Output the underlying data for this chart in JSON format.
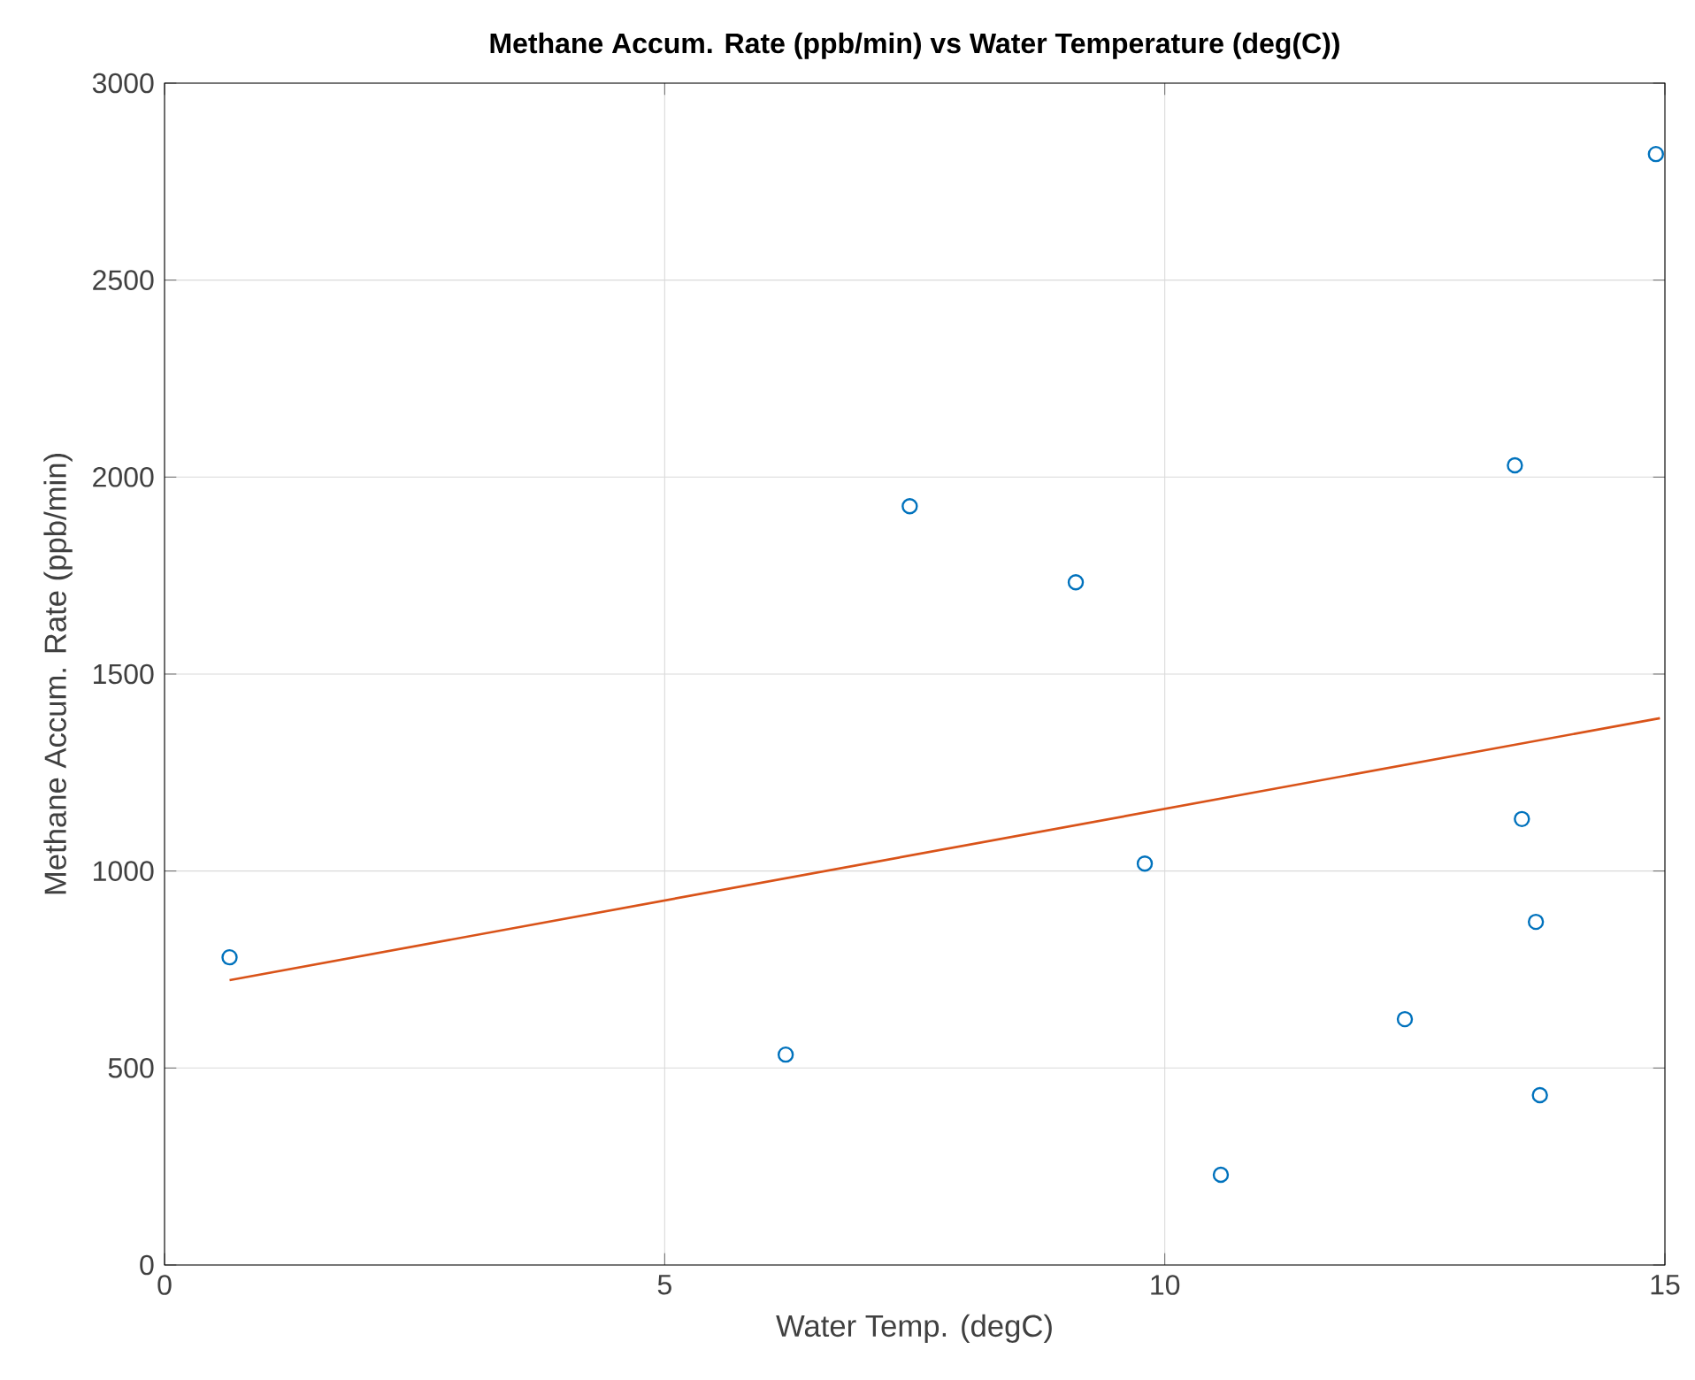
{
  "chart_data": {
    "type": "scatter",
    "title": "Methane Accum. Rate (ppb/min) vs Water Temperature (deg(C))",
    "xlabel": "Water Temp. (degC)",
    "ylabel": "Methane Accum. Rate (ppb/min)",
    "series": [
      {
        "color": "#0072bd",
        "x": [
          0.65,
          6.21,
          7.45,
          9.11,
          9.8,
          10.56,
          12.4,
          13.5,
          13.57,
          13.71,
          13.75,
          14.91
        ],
        "values": [
          781,
          534,
          1926,
          1733,
          1019,
          229,
          624,
          2030,
          1132,
          871,
          431,
          2820
        ]
      },
      {
        "type": "line",
        "marker": "none",
        "color": "#d95319",
        "x": [
          0.65,
          14.95
        ],
        "values": [
          723,
          1388
        ]
      }
    ],
    "marker": "circle",
    "grid": true,
    "xlim": [
      0,
      15
    ],
    "ylim": [
      0,
      3000
    ],
    "xticks": [
      0,
      5,
      10,
      15
    ],
    "yticks": [
      0,
      500,
      1000,
      1500,
      2000,
      2500,
      3000
    ]
  }
}
